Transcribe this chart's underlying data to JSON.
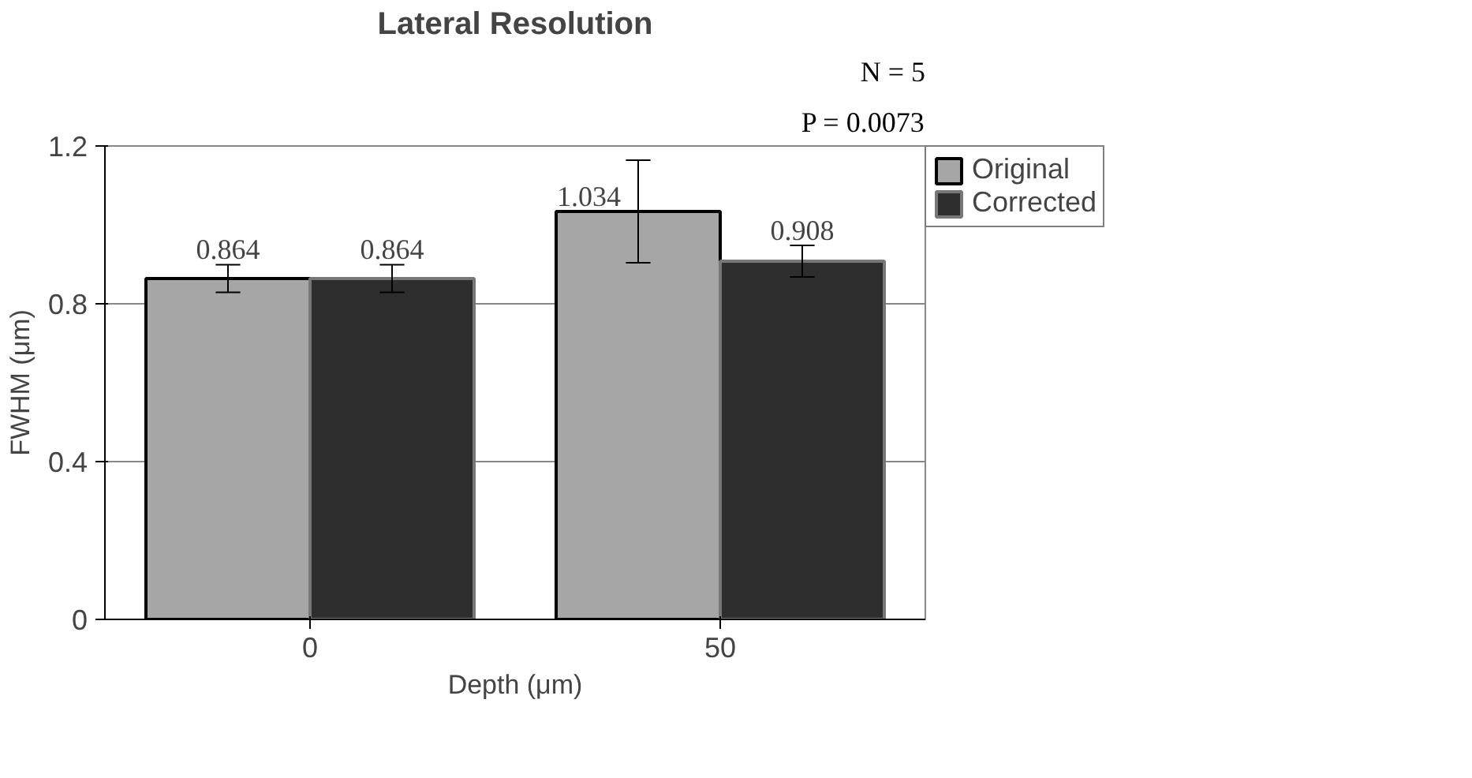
{
  "chart_data": {
    "type": "bar",
    "title": "Lateral Resolution",
    "xlabel": "Depth (μm)",
    "ylabel": "FWHM (μm)",
    "categories": [
      "0",
      "50"
    ],
    "series": [
      {
        "name": "Original",
        "color": "#a6a6a6",
        "values": [
          0.864,
          1.034
        ],
        "errors": [
          0.035,
          0.13
        ]
      },
      {
        "name": "Corrected",
        "color": "#2e2e2e",
        "values": [
          0.864,
          0.908
        ],
        "errors": [
          0.035,
          0.04
        ]
      }
    ],
    "ylim": [
      0,
      1.2
    ],
    "yticks": [
      0,
      0.4,
      0.8,
      1.2
    ],
    "grid": "y",
    "legend": "top right",
    "data_labels": true,
    "annotations": [
      "N = 5",
      "P = 0.0073"
    ]
  }
}
